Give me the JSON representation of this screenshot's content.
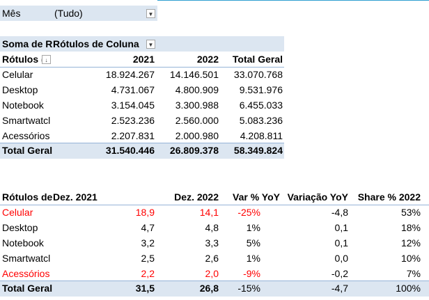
{
  "filter": {
    "label": "Mês",
    "value": "(Tudo)"
  },
  "pivot": {
    "values_label": "Soma de Re",
    "column_labels": "Rótulos de Coluna",
    "row_labels": "Rótulos (",
    "columns": [
      "2021",
      "2022",
      "Total Geral"
    ],
    "rows": [
      {
        "label": "Celular",
        "v2021": "18.924.267",
        "v2022": "14.146.501",
        "total": "33.070.768"
      },
      {
        "label": "Desktop",
        "v2021": "4.731.067",
        "v2022": "4.800.909",
        "total": "9.531.976"
      },
      {
        "label": "Notebook",
        "v2021": "3.154.045",
        "v2022": "3.300.988",
        "total": "6.455.033"
      },
      {
        "label": "Smartwatcl",
        "v2021": "2.523.236",
        "v2022": "2.560.000",
        "total": "5.083.236"
      },
      {
        "label": "Acessórios",
        "v2021": "2.207.831",
        "v2022": "2.000.980",
        "total": "4.208.811"
      }
    ],
    "total": {
      "label": "Total Geral",
      "v2021": "31.540.446",
      "v2022": "26.809.378",
      "total": "58.349.824"
    }
  },
  "summary": {
    "headers": {
      "row_labels": "Rótulos de",
      "dez2021": "Dez. 2021",
      "dez2022": "Dez. 2022",
      "var_pct": "Var % YoY",
      "variacao": "Variação YoY",
      "share": "Share % 2022"
    },
    "rows": [
      {
        "label": "Celular",
        "dez2021": "18,9",
        "dez2022": "14,1",
        "var_pct": "-25%",
        "variacao": "-4,8",
        "share": "53%",
        "highlight": true
      },
      {
        "label": "Desktop",
        "dez2021": "4,7",
        "dez2022": "4,8",
        "var_pct": "1%",
        "variacao": "0,1",
        "share": "18%",
        "highlight": false
      },
      {
        "label": "Notebook",
        "dez2021": "3,2",
        "dez2022": "3,3",
        "var_pct": "5%",
        "variacao": "0,1",
        "share": "12%",
        "highlight": false
      },
      {
        "label": "Smartwatcl",
        "dez2021": "2,5",
        "dez2022": "2,6",
        "var_pct": "1%",
        "variacao": "0,0",
        "share": "10%",
        "highlight": false
      },
      {
        "label": "Acessórios",
        "dez2021": "2,2",
        "dez2022": "2,0",
        "var_pct": "-9%",
        "variacao": "-0,2",
        "share": "7%",
        "highlight": true
      }
    ],
    "total": {
      "label": "Total Geral",
      "dez2021": "31,5",
      "dez2022": "26,8",
      "var_pct": "-15%",
      "variacao": "-4,7",
      "share": "100%"
    }
  },
  "colors": {
    "highlight": "#ff0000",
    "band": "#dce6f1",
    "border": "#95b3d7"
  }
}
